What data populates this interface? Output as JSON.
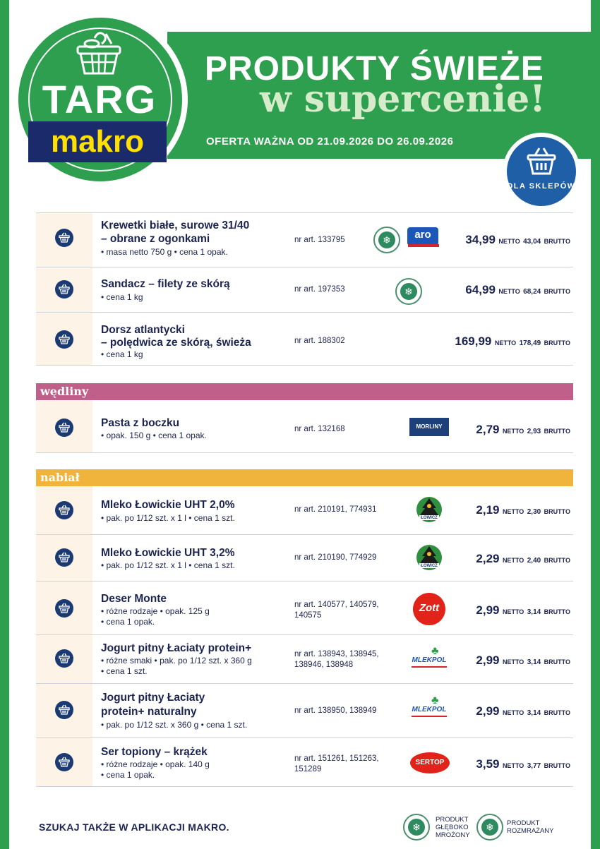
{
  "header": {
    "title": "PRODUKTY ŚWIEŻE",
    "subtitle": "w supercenie!",
    "validity": "OFERTA WAŻNA OD 21.09.2026 DO 26.09.2026"
  },
  "logo": {
    "top": "TARG",
    "bottom": "makro"
  },
  "badge": {
    "text": "DLA SKLEPÓW"
  },
  "categories": {
    "wedliny": "wędliny",
    "nabial": "nabiał"
  },
  "products": [
    {
      "name1": "Krewetki białe, surowe 31/40",
      "name2": "– obrane z ogonkami",
      "detail1": "• masa netto 750 g • cena 1 opak.",
      "detail2": "",
      "article1": "nr art. 133795",
      "article2": "",
      "brand": "aro",
      "netto": "34,99",
      "brutto": "43,04"
    },
    {
      "name1": "Sandacz – filety ze skórą",
      "name2": "",
      "detail1": "• cena 1 kg",
      "detail2": "",
      "article1": "nr art. 197353",
      "article2": "",
      "brand": "",
      "netto": "64,99",
      "brutto": "68,24"
    },
    {
      "name1": "Dorsz atlantycki",
      "name2": "– polędwica ze skórą, świeża",
      "detail1": "• cena 1 kg",
      "detail2": "",
      "article1": "nr art. 188302",
      "article2": "",
      "brand": "",
      "netto": "169,99",
      "brutto": "178,49"
    },
    {
      "name1": "Pasta z boczku",
      "name2": "",
      "detail1": "• opak. 150 g • cena 1 opak.",
      "detail2": "",
      "article1": "nr art. 132168",
      "article2": "",
      "brand": "MORLINY",
      "netto": "2,79",
      "brutto": "2,93"
    },
    {
      "name1": "Mleko Łowickie UHT 2,0%",
      "name2": "",
      "detail1": "• pak. po 1/12 szt. x 1 l • cena 1 szt.",
      "detail2": "",
      "article1": "nr art. 210191, 774931",
      "article2": "",
      "brand": "ŁOWICZ",
      "netto": "2,19",
      "brutto": "2,30"
    },
    {
      "name1": "Mleko Łowickie UHT 3,2%",
      "name2": "",
      "detail1": "• pak. po 1/12 szt. x 1 l • cena 1 szt.",
      "detail2": "",
      "article1": "nr art. 210190, 774929",
      "article2": "",
      "brand": "ŁOWICZ",
      "netto": "2,29",
      "brutto": "2,40"
    },
    {
      "name1": "Deser Monte",
      "name2": "",
      "detail1": "• różne rodzaje • opak. 125 g",
      "detail2": "• cena 1 opak.",
      "article1": "nr art. 140577, 140579,",
      "article2": "140575",
      "brand": "Zott",
      "netto": "2,99",
      "brutto": "3,14"
    },
    {
      "name1": "Jogurt pitny Łaciaty protein+",
      "name2": "",
      "detail1": "• różne smaki • pak. po 1/12 szt. x 360 g",
      "detail2": "• cena 1 szt.",
      "article1": "nr art. 138943, 138945,",
      "article2": "138946, 138948",
      "brand": "MLEKPOL",
      "netto": "2,99",
      "brutto": "3,14"
    },
    {
      "name1": "Jogurt pitny Łaciaty",
      "name2": "protein+ naturalny",
      "detail1": "• pak. po 1/12 szt. x 360 g • cena 1 szt.",
      "detail2": "",
      "article1": "nr art. 138950, 138949",
      "article2": "",
      "brand": "MLEKPOL",
      "netto": "2,99",
      "brutto": "3,14"
    },
    {
      "name1": "Ser topiony – krążek",
      "name2": "",
      "detail1": "• różne rodzaje • opak. 140 g",
      "detail2": "• cena 1 opak.",
      "article1": "nr art. 151261, 151263,",
      "article2": "151289",
      "brand": "SERTOP",
      "netto": "3,59",
      "brutto": "3,77"
    }
  ],
  "labels": {
    "netto": "NETTO",
    "brutto": "BRUTTO"
  },
  "footer": {
    "app": "SZUKAJ TAKŻE W APLIKACJI MAKRO.",
    "legend_frozen_1": "PRODUKT",
    "legend_frozen_2": "GŁĘBOKO",
    "legend_frozen_3": "MROŻONY",
    "legend_thawed_1": "PRODUKT",
    "legend_thawed_2": "ROZMRAŻANY"
  },
  "colors": {
    "green": "#2e9e4f",
    "navy": "#1b2a6b",
    "yellow": "#ffe000",
    "wedliny": "#c0608a",
    "nabial": "#f0b43c",
    "side": "#fdf3e7"
  }
}
